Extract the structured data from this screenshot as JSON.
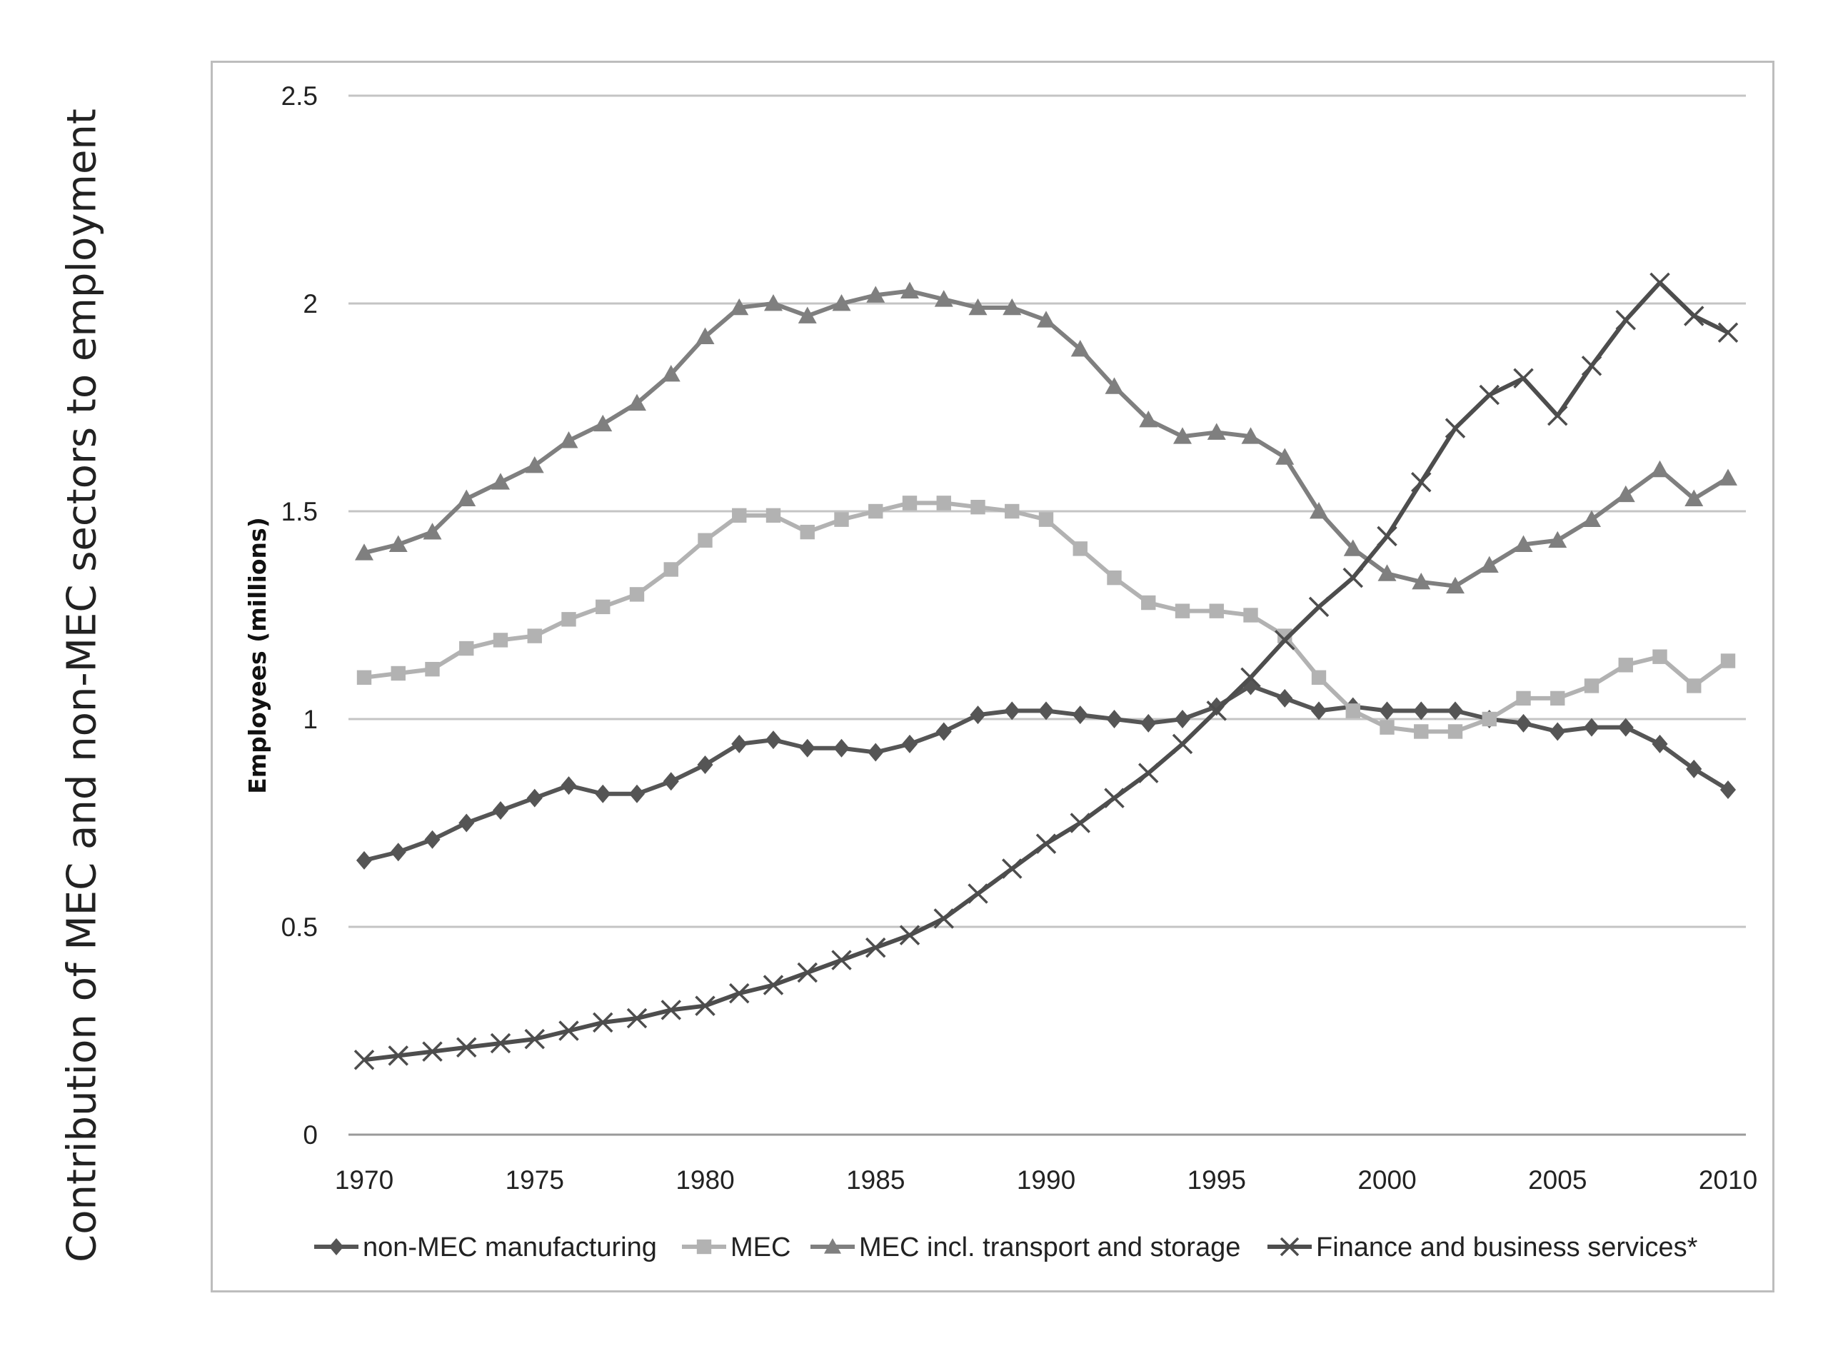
{
  "page": {
    "title": "Contribution of MEC and non-MEC sectors to employment"
  },
  "chart_data": {
    "type": "line",
    "title": "",
    "xlabel": "",
    "ylabel": "Employees (millions)",
    "x": [
      1970,
      1971,
      1972,
      1973,
      1974,
      1975,
      1976,
      1977,
      1978,
      1979,
      1980,
      1981,
      1982,
      1983,
      1984,
      1985,
      1986,
      1987,
      1988,
      1989,
      1990,
      1991,
      1992,
      1993,
      1994,
      1995,
      1996,
      1997,
      1998,
      1999,
      2000,
      2001,
      2002,
      2003,
      2004,
      2005,
      2006,
      2007,
      2008,
      2009,
      2010
    ],
    "xticks": [
      "1970",
      "1975",
      "1980",
      "1985",
      "1990",
      "1995",
      "2000",
      "2005",
      "2010"
    ],
    "yticks": [
      "0",
      "0.5",
      "1",
      "1.5",
      "2",
      "2.5"
    ],
    "xlim": [
      1970,
      2010
    ],
    "ylim": [
      0,
      2.5
    ],
    "grid": "horizontal",
    "legend_position": "bottom",
    "series": [
      {
        "name": "non-MEC manufacturing",
        "marker": "diamond",
        "color": "#555555",
        "values": [
          0.66,
          0.68,
          0.71,
          0.75,
          0.78,
          0.81,
          0.84,
          0.82,
          0.82,
          0.85,
          0.89,
          0.94,
          0.95,
          0.93,
          0.93,
          0.92,
          0.94,
          0.97,
          1.01,
          1.02,
          1.02,
          1.01,
          1.0,
          0.99,
          1.0,
          1.03,
          1.08,
          1.05,
          1.02,
          1.03,
          1.02,
          1.02,
          1.02,
          1.0,
          0.99,
          0.97,
          0.98,
          0.98,
          0.94,
          0.88,
          0.83
        ]
      },
      {
        "name": "MEC",
        "marker": "square",
        "color": "#b2b2b2",
        "values": [
          1.1,
          1.11,
          1.12,
          1.17,
          1.19,
          1.2,
          1.24,
          1.27,
          1.3,
          1.36,
          1.43,
          1.49,
          1.49,
          1.45,
          1.48,
          1.5,
          1.52,
          1.52,
          1.51,
          1.5,
          1.48,
          1.41,
          1.34,
          1.28,
          1.26,
          1.26,
          1.25,
          1.2,
          1.1,
          1.02,
          0.98,
          0.97,
          0.97,
          1.0,
          1.05,
          1.05,
          1.08,
          1.13,
          1.15,
          1.08,
          1.14
        ]
      },
      {
        "name": "MEC incl. transport and storage",
        "marker": "triangle",
        "color": "#7f7f7f",
        "values": [
          1.4,
          1.42,
          1.45,
          1.53,
          1.57,
          1.61,
          1.67,
          1.71,
          1.76,
          1.83,
          1.92,
          1.99,
          2.0,
          1.97,
          2.0,
          2.02,
          2.03,
          2.01,
          1.99,
          1.99,
          1.96,
          1.89,
          1.8,
          1.72,
          1.68,
          1.69,
          1.68,
          1.63,
          1.5,
          1.41,
          1.35,
          1.33,
          1.32,
          1.37,
          1.42,
          1.43,
          1.48,
          1.54,
          1.6,
          1.53,
          1.58
        ]
      },
      {
        "name": "Finance and business services*",
        "marker": "x",
        "color": "#4d4d4d",
        "values": [
          0.18,
          0.19,
          0.2,
          0.21,
          0.22,
          0.23,
          0.25,
          0.27,
          0.28,
          0.3,
          0.31,
          0.34,
          0.36,
          0.39,
          0.42,
          0.45,
          0.48,
          0.52,
          0.58,
          0.64,
          0.7,
          0.75,
          0.81,
          0.87,
          0.94,
          1.02,
          1.1,
          1.19,
          1.27,
          1.34,
          1.44,
          1.57,
          1.7,
          1.78,
          1.82,
          1.73,
          1.85,
          1.96,
          2.05,
          1.97,
          1.93
        ]
      }
    ]
  }
}
